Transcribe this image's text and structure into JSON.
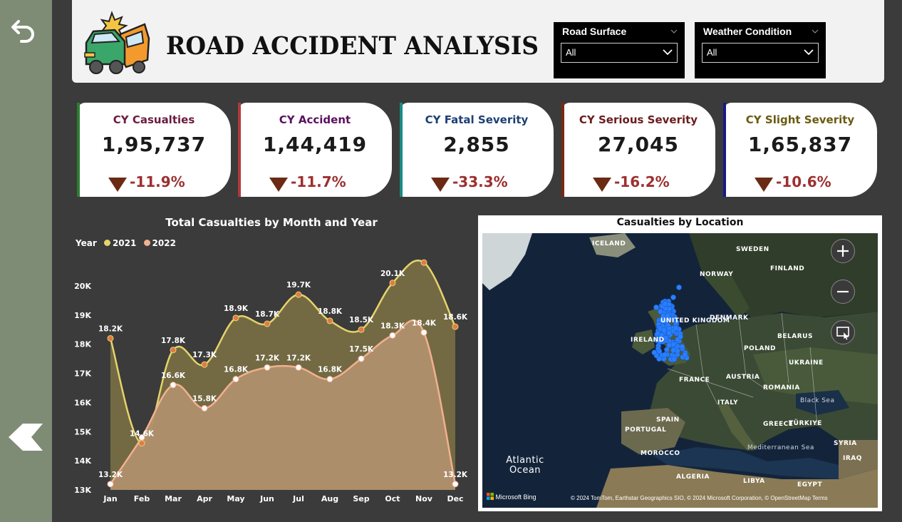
{
  "header": {
    "title": "ROAD ACCIDENT ANALYSIS"
  },
  "slicers": [
    {
      "label": "Road Surface",
      "value": "All"
    },
    {
      "label": "Weather Condition",
      "value": "All"
    }
  ],
  "kpis": [
    {
      "title": "CY Casualties",
      "value": "1,95,737",
      "change": "-11.9%",
      "title_color": "#6b1c3f",
      "stripe_color": "#2e7d32"
    },
    {
      "title": "CY Accident",
      "value": "1,44,419",
      "change": "-11.7%",
      "title_color": "#5a1060",
      "stripe_color": "#b03a3a"
    },
    {
      "title": "CY Fatal Severity",
      "value": "2,855",
      "change": "-33.3%",
      "title_color": "#1d3f75",
      "stripe_color": "#1a8a84"
    },
    {
      "title": "CY Serious Severity",
      "value": "27,045",
      "change": "-16.2%",
      "title_color": "#6b1c1c",
      "stripe_color": "#7a2a12"
    },
    {
      "title": "CY Slight Severity",
      "value": "1,65,837",
      "change": "-10.6%",
      "title_color": "#6b5a10",
      "stripe_color": "#1a1a8a"
    }
  ],
  "chart": {
    "legend_title": "Year",
    "legend_items": [
      {
        "name": "2021",
        "color": "#e6d36a"
      },
      {
        "name": "2022",
        "color": "#f2b08f"
      }
    ]
  },
  "chart_data": {
    "type": "area",
    "title": "Total Casualties by Month and Year",
    "categories": [
      "Jan",
      "Feb",
      "Mar",
      "Apr",
      "May",
      "Jun",
      "Jul",
      "Aug",
      "Sep",
      "Oct",
      "Nov",
      "Dec"
    ],
    "y_ticks": [
      "13K",
      "14K",
      "15K",
      "16K",
      "17K",
      "18K",
      "19K",
      "20K"
    ],
    "ylim": [
      13000,
      21000
    ],
    "series": [
      {
        "name": "2021",
        "values": [
          18200,
          14600,
          17800,
          17300,
          18900,
          18700,
          19700,
          18800,
          18500,
          20100,
          20800,
          18600
        ],
        "labels": [
          "18.2K",
          "14.6K",
          "17.8K",
          "17.3K",
          "18.9K",
          "18.7K",
          "19.7K",
          "18.8K",
          "18.5K",
          "20.1K",
          "",
          "18.6K"
        ],
        "color": "#e6d36a"
      },
      {
        "name": "2022",
        "values": [
          13200,
          14800,
          16600,
          15800,
          16800,
          17200,
          17200,
          16800,
          17500,
          18300,
          18400,
          13200
        ],
        "labels": [
          "13.2K",
          "",
          "16.6K",
          "15.8K",
          "16.8K",
          "17.2K",
          "17.2K",
          "16.8K",
          "17.5K",
          "18.3K",
          "18.4K",
          "13.2K"
        ],
        "color": "#f2b08f"
      }
    ]
  },
  "map": {
    "title": "Casualties by Location",
    "labels": [
      "ICELAND",
      "SWEDEN",
      "FINLAND",
      "NORWAY",
      "DENMARK",
      "UNITED KINGDOM",
      "IRELAND",
      "BELARUS",
      "POLAND",
      "UKRAINE",
      "FRANCE",
      "AUSTRIA",
      "ROMANIA",
      "Black Sea",
      "ITALY",
      "SPAIN",
      "PORTUGAL",
      "GREECE",
      "TÜRKIYE",
      "SYRIA",
      "IRAQ",
      "MOROCCO",
      "ALGERIA",
      "LIBYA",
      "EGYPT",
      "Mediterranean Sea",
      "Atlantic Ocean"
    ],
    "logo": "Microsoft Bing",
    "attribution": "© 2024 TomTom, Earthstar Geographics SIO, © 2024 Microsoft Corporation, © OpenStreetMap  Terms"
  }
}
